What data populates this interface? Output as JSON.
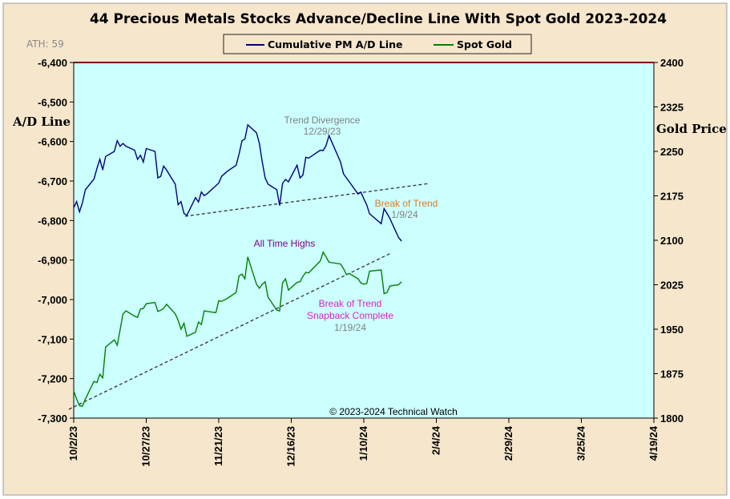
{
  "chart_data": {
    "type": "line",
    "title": "44 Precious Metals Stocks Advance/Decline Line With Spot Gold 2023-2024",
    "ath_label": "ATH: 59",
    "copyright": "© 2023-2024  Technical Watch",
    "left_axis": {
      "label": "A/D Line",
      "ylim": [
        -7300,
        -6400
      ],
      "ticks": [
        "-6,400",
        "-6,500",
        "-6,600",
        "-6,700",
        "-6,800",
        "-6,900",
        "-7,000",
        "-7,100",
        "-7,200",
        "-7,300"
      ]
    },
    "right_axis": {
      "label": "Gold Price",
      "ylim": [
        1800,
        2400
      ],
      "ticks": [
        "2400",
        "2325",
        "2250",
        "2175",
        "2100",
        "2025",
        "1950",
        "1875",
        "1800"
      ]
    },
    "x_axis": {
      "start": "2023-10-02",
      "end": "2024-04-19",
      "ticks": [
        "10/2/23",
        "10/27/23",
        "11/21/23",
        "12/16/23",
        "1/10/24",
        "2/4/24",
        "2/29/24",
        "3/25/24",
        "4/19/24"
      ]
    },
    "colors": {
      "background": "#f5e6cc",
      "plot": "#ccffff",
      "ad_line": "#000080",
      "gold": "#008000",
      "top_border": "#800000",
      "trend": "#333333"
    },
    "series": [
      {
        "name": "Cumulative PM A/D Line",
        "axis": "left",
        "x": [
          "2023-10-02",
          "2023-10-03",
          "2023-10-04",
          "2023-10-05",
          "2023-10-06",
          "2023-10-09",
          "2023-10-10",
          "2023-10-11",
          "2023-10-12",
          "2023-10-13",
          "2023-10-16",
          "2023-10-17",
          "2023-10-18",
          "2023-10-19",
          "2023-10-20",
          "2023-10-23",
          "2023-10-24",
          "2023-10-25",
          "2023-10-26",
          "2023-10-27",
          "2023-10-30",
          "2023-10-31",
          "2023-11-01",
          "2023-11-02",
          "2023-11-03",
          "2023-11-06",
          "2023-11-07",
          "2023-11-08",
          "2023-11-09",
          "2023-11-10",
          "2023-11-13",
          "2023-11-14",
          "2023-11-15",
          "2023-11-16",
          "2023-11-17",
          "2023-11-20",
          "2023-11-21",
          "2023-11-22",
          "2023-11-24",
          "2023-11-27",
          "2023-11-28",
          "2023-11-29",
          "2023-11-30",
          "2023-12-01",
          "2023-12-04",
          "2023-12-05",
          "2023-12-06",
          "2023-12-07",
          "2023-12-08",
          "2023-12-11",
          "2023-12-12",
          "2023-12-13",
          "2023-12-14",
          "2023-12-15",
          "2023-12-18",
          "2023-12-19",
          "2023-12-20",
          "2023-12-21",
          "2023-12-22",
          "2023-12-26",
          "2023-12-27",
          "2023-12-28",
          "2023-12-29",
          "2024-01-02",
          "2024-01-03",
          "2024-01-04",
          "2024-01-05",
          "2024-01-08",
          "2024-01-09",
          "2024-01-10",
          "2024-01-11",
          "2024-01-12",
          "2024-01-16",
          "2024-01-17",
          "2024-01-18",
          "2024-01-19",
          "2024-01-22",
          "2024-01-23"
        ],
        "values": [
          -6768,
          -6752,
          -6778,
          -6755,
          -6722,
          -6695,
          -6668,
          -6645,
          -6672,
          -6638,
          -6625,
          -6598,
          -6612,
          -6605,
          -6612,
          -6622,
          -6645,
          -6635,
          -6652,
          -6618,
          -6625,
          -6692,
          -6688,
          -6662,
          -6672,
          -6708,
          -6760,
          -6752,
          -6782,
          -6787,
          -6742,
          -6753,
          -6728,
          -6737,
          -6732,
          -6712,
          -6705,
          -6688,
          -6675,
          -6660,
          -6632,
          -6598,
          -6594,
          -6558,
          -6578,
          -6605,
          -6652,
          -6692,
          -6708,
          -6722,
          -6762,
          -6706,
          -6696,
          -6702,
          -6660,
          -6692,
          -6685,
          -6640,
          -6642,
          -6622,
          -6623,
          -6610,
          -6585,
          -6652,
          -6682,
          -6692,
          -6702,
          -6733,
          -6728,
          -6745,
          -6760,
          -6783,
          -6808,
          -6770,
          -6782,
          -6795,
          -6843,
          -6852
        ]
      },
      {
        "name": "Spot Gold",
        "axis": "right",
        "x": [
          "2023-10-02",
          "2023-10-03",
          "2023-10-04",
          "2023-10-05",
          "2023-10-06",
          "2023-10-09",
          "2023-10-10",
          "2023-10-11",
          "2023-10-12",
          "2023-10-13",
          "2023-10-16",
          "2023-10-17",
          "2023-10-18",
          "2023-10-19",
          "2023-10-20",
          "2023-10-23",
          "2023-10-24",
          "2023-10-25",
          "2023-10-26",
          "2023-10-27",
          "2023-10-30",
          "2023-10-31",
          "2023-11-01",
          "2023-11-02",
          "2023-11-03",
          "2023-11-06",
          "2023-11-07",
          "2023-11-08",
          "2023-11-09",
          "2023-11-10",
          "2023-11-13",
          "2023-11-14",
          "2023-11-15",
          "2023-11-16",
          "2023-11-17",
          "2023-11-20",
          "2023-11-21",
          "2023-11-22",
          "2023-11-24",
          "2023-11-27",
          "2023-11-28",
          "2023-11-29",
          "2023-11-30",
          "2023-12-01",
          "2023-12-04",
          "2023-12-05",
          "2023-12-06",
          "2023-12-07",
          "2023-12-08",
          "2023-12-11",
          "2023-12-12",
          "2023-12-13",
          "2023-12-14",
          "2023-12-15",
          "2023-12-18",
          "2023-12-19",
          "2023-12-20",
          "2023-12-21",
          "2023-12-22",
          "2023-12-26",
          "2023-12-27",
          "2023-12-28",
          "2023-12-29",
          "2024-01-02",
          "2024-01-03",
          "2024-01-04",
          "2024-01-05",
          "2024-01-08",
          "2024-01-09",
          "2024-01-10",
          "2024-01-11",
          "2024-01-12",
          "2024-01-16",
          "2024-01-17",
          "2024-01-18",
          "2024-01-19",
          "2024-01-22",
          "2024-01-23"
        ],
        "values": [
          1846,
          1832,
          1821,
          1820,
          1832,
          1862,
          1860,
          1874,
          1868,
          1920,
          1932,
          1923,
          1949,
          1976,
          1981,
          1972,
          1970,
          1984,
          1985,
          1993,
          1995,
          1980,
          1982,
          1985,
          1992,
          1976,
          1965,
          1950,
          1960,
          1938,
          1945,
          1962,
          1958,
          1981,
          1980,
          1978,
          1998,
          1997,
          2002,
          2012,
          2040,
          2043,
          2035,
          2072,
          2026,
          2019,
          2026,
          2030,
          2004,
          1982,
          1981,
          2028,
          2035,
          2016,
          2029,
          2030,
          2039,
          2046,
          2045,
          2065,
          2080,
          2072,
          2063,
          2060,
          2052,
          2042,
          2044,
          2035,
          2028,
          2026,
          2027,
          2048,
          2050,
          2010,
          2012,
          2023,
          2025,
          2030
        ]
      }
    ],
    "legend": {
      "placement": "top-center",
      "items": [
        "Cumulative PM A/D Line",
        "Spot Gold"
      ]
    },
    "annotations": {
      "trend_divergence": [
        "Trend  Divergence",
        "12/29/23"
      ],
      "break_of_trend_1": [
        "Break of Trend",
        "1/9/24"
      ],
      "all_time_highs": [
        "All Time Highs"
      ],
      "break_of_trend_2": [
        "Break of Trend",
        "Snapback Complete",
        "1/19/24"
      ]
    }
  }
}
